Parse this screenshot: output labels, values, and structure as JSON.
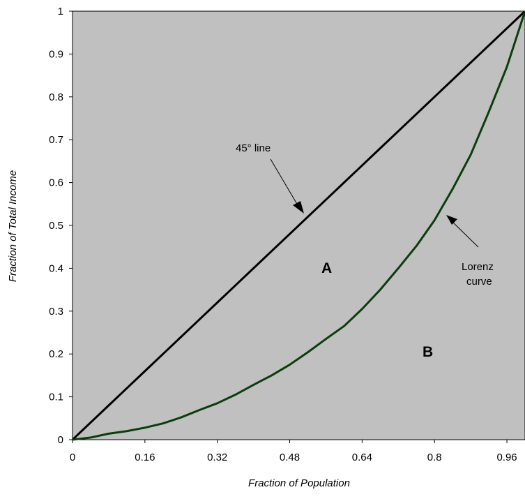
{
  "chart_data": {
    "type": "line",
    "xlabel": "Fraction of Population",
    "ylabel": "Fraction of Total Income",
    "xlim": [
      0,
      1
    ],
    "ylim": [
      0,
      1
    ],
    "x_ticks": [
      "0",
      "0.16",
      "0.32",
      "0.48",
      "0.64",
      "0.8",
      "0.96"
    ],
    "x_tick_values": [
      0,
      0.16,
      0.32,
      0.48,
      0.64,
      0.8,
      0.96
    ],
    "y_ticks": [
      "0",
      "0.1",
      "0.2",
      "0.3",
      "0.4",
      "0.5",
      "0.6",
      "0.7",
      "0.8",
      "0.9",
      "1"
    ],
    "y_tick_values": [
      0,
      0.1,
      0.2,
      0.3,
      0.4,
      0.5,
      0.6,
      0.7,
      0.8,
      0.9,
      1
    ],
    "grid": false,
    "background_color": "#c0c0c0",
    "series": [
      {
        "key": "equality",
        "color": "#000000",
        "x": [
          0,
          0.04,
          0.08,
          0.12,
          0.16,
          0.2,
          0.24,
          0.28,
          0.32,
          0.36,
          0.4,
          0.44,
          0.48,
          0.52,
          0.56,
          0.6,
          0.64,
          0.68,
          0.72,
          0.76,
          0.8,
          0.84,
          0.88,
          0.92,
          0.96,
          1
        ],
        "y": [
          0,
          0.04,
          0.08,
          0.12,
          0.16,
          0.2,
          0.24,
          0.28,
          0.32,
          0.36,
          0.4,
          0.44,
          0.48,
          0.52,
          0.56,
          0.6,
          0.64,
          0.68,
          0.72,
          0.76,
          0.8,
          0.84,
          0.88,
          0.92,
          0.96,
          1
        ]
      },
      {
        "key": "lorenz",
        "color": "#0b3d0b",
        "x": [
          0,
          0.04,
          0.08,
          0.12,
          0.16,
          0.2,
          0.24,
          0.28,
          0.32,
          0.36,
          0.4,
          0.44,
          0.48,
          0.52,
          0.56,
          0.6,
          0.64,
          0.68,
          0.72,
          0.76,
          0.8,
          0.84,
          0.88,
          0.92,
          0.96,
          1
        ],
        "y": [
          0,
          0.005,
          0.014,
          0.02,
          0.028,
          0.038,
          0.052,
          0.069,
          0.085,
          0.105,
          0.128,
          0.15,
          0.175,
          0.204,
          0.235,
          0.265,
          0.305,
          0.35,
          0.4,
          0.452,
          0.512,
          0.585,
          0.665,
          0.765,
          0.87,
          1.0
        ]
      }
    ],
    "annotations": [
      {
        "key": "line_label",
        "text": "45° line"
      },
      {
        "key": "lorenz_label",
        "lines": [
          "Lorenz",
          "curve"
        ]
      },
      {
        "key": "area_a",
        "text": "A"
      },
      {
        "key": "area_b",
        "text": "B"
      }
    ]
  }
}
